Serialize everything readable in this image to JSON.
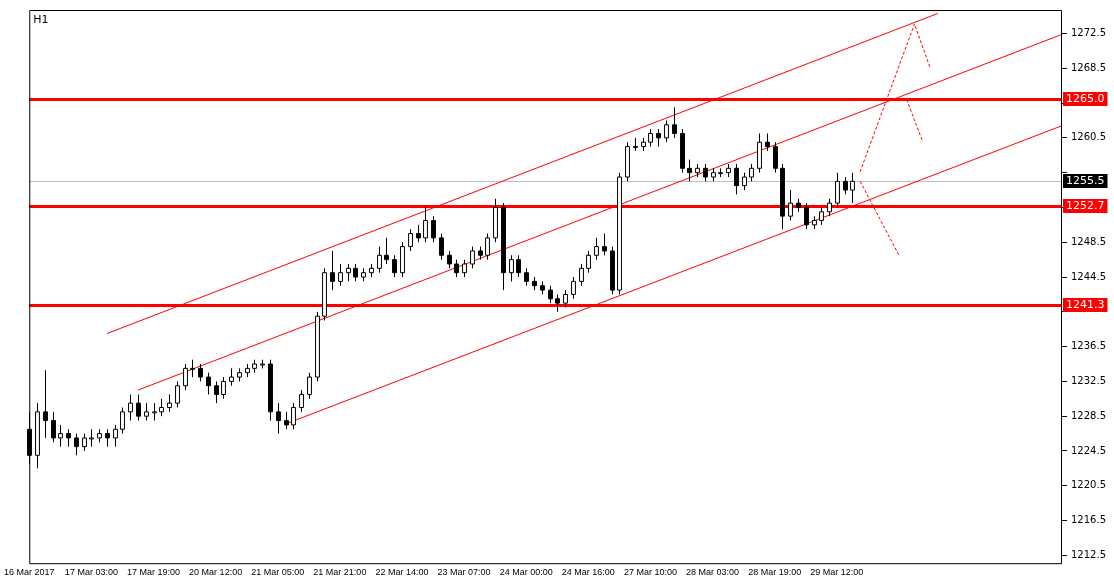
{
  "chart_data": {
    "type": "candlestick",
    "title": "H1",
    "categories": [
      "16 Mar 2017",
      null,
      null,
      null,
      null,
      null,
      null,
      null,
      "17 Mar 03:00",
      null,
      null,
      null,
      null,
      null,
      null,
      null,
      "17 Mar 19:00",
      null,
      null,
      null,
      null,
      null,
      null,
      null,
      "20 Mar 12:00",
      null,
      null,
      null,
      null,
      null,
      null,
      null,
      "21 Mar 05:00",
      null,
      null,
      null,
      null,
      null,
      null,
      null,
      "21 Mar 21:00",
      null,
      null,
      null,
      null,
      null,
      null,
      null,
      "22 Mar 14:00",
      null,
      null,
      null,
      null,
      null,
      null,
      null,
      "23 Mar 07:00",
      null,
      null,
      null,
      null,
      null,
      null,
      null,
      "24 Mar 00:00",
      null,
      null,
      null,
      null,
      null,
      null,
      null,
      "24 Mar 16:00",
      null,
      null,
      null,
      null,
      null,
      null,
      null,
      "27 Mar 10:00",
      null,
      null,
      null,
      null,
      null,
      null,
      null,
      "28 Mar 03:00",
      null,
      null,
      null,
      null,
      null,
      null,
      null,
      "28 Mar 19:00",
      null,
      null,
      null,
      null,
      null,
      null,
      null,
      "29 Mar 12:00",
      null,
      null,
      null,
      null,
      null,
      null,
      null,
      null,
      null,
      null,
      null,
      null,
      null,
      null,
      null,
      null,
      null,
      null,
      null,
      null,
      null,
      null,
      null,
      null,
      null,
      null,
      null,
      null,
      null
    ],
    "ohlc": [
      [
        1227,
        1229,
        1223,
        1224
      ],
      [
        1224,
        1230,
        1222.5,
        1229
      ],
      [
        1229,
        1233.8,
        1226,
        1228
      ],
      [
        1228,
        1229,
        1225.5,
        1226
      ],
      [
        1226,
        1227.5,
        1225,
        1226.5
      ],
      [
        1226.5,
        1227,
        1225,
        1226
      ],
      [
        1226,
        1226.5,
        1224,
        1225
      ],
      [
        1225,
        1226.5,
        1224.5,
        1226
      ],
      [
        1226,
        1227,
        1225,
        1226
      ],
      [
        1226,
        1227,
        1225.5,
        1226.5
      ],
      [
        1226.5,
        1227,
        1225,
        1226
      ],
      [
        1226,
        1227.5,
        1225,
        1227
      ],
      [
        1227,
        1229.5,
        1226.5,
        1229
      ],
      [
        1229,
        1231,
        1228,
        1230
      ],
      [
        1230,
        1231,
        1228,
        1228.5
      ],
      [
        1228.5,
        1230,
        1228,
        1229
      ],
      [
        1229,
        1230,
        1228,
        1229
      ],
      [
        1229,
        1230.5,
        1228.5,
        1229.5
      ],
      [
        1229.5,
        1231,
        1229,
        1230
      ],
      [
        1230,
        1232.5,
        1229.5,
        1232
      ],
      [
        1232,
        1234.5,
        1231.5,
        1234
      ],
      [
        1234,
        1235,
        1233,
        1234
      ],
      [
        1234,
        1234.5,
        1232.5,
        1233
      ],
      [
        1233,
        1233.5,
        1231,
        1232
      ],
      [
        1232,
        1232.5,
        1230,
        1231
      ],
      [
        1231,
        1233,
        1230.5,
        1232.5
      ],
      [
        1232.5,
        1234,
        1232,
        1233
      ],
      [
        1233,
        1234,
        1232.5,
        1233.5
      ],
      [
        1233.5,
        1234.5,
        1233,
        1234
      ],
      [
        1234,
        1235,
        1233.5,
        1234.5
      ],
      [
        1234.5,
        1235,
        1234,
        1234.5
      ],
      [
        1234.5,
        1235,
        1228,
        1229
      ],
      [
        1229,
        1230,
        1226.5,
        1228
      ],
      [
        1228,
        1229,
        1227,
        1227.5
      ],
      [
        1227.5,
        1230,
        1227,
        1229.5
      ],
      [
        1229.5,
        1231.5,
        1229,
        1231
      ],
      [
        1231,
        1233.5,
        1230.5,
        1233
      ],
      [
        1233,
        1240.5,
        1232.5,
        1240
      ],
      [
        1240,
        1245.5,
        1239.5,
        1245
      ],
      [
        1245,
        1247.5,
        1243,
        1244
      ],
      [
        1244,
        1246,
        1243.5,
        1245
      ],
      [
        1245,
        1246,
        1244,
        1245.5
      ],
      [
        1245.5,
        1246,
        1244,
        1244.5
      ],
      [
        1244.5,
        1245.5,
        1244,
        1245
      ],
      [
        1245,
        1246,
        1244.5,
        1245.5
      ],
      [
        1245.5,
        1248,
        1245,
        1247
      ],
      [
        1247,
        1249,
        1246,
        1246.5
      ],
      [
        1246.5,
        1247,
        1244.5,
        1245
      ],
      [
        1245,
        1248.5,
        1244.5,
        1248
      ],
      [
        1248,
        1250,
        1247.5,
        1249.5
      ],
      [
        1249.5,
        1250.5,
        1248.5,
        1249
      ],
      [
        1249,
        1252.5,
        1248.5,
        1251
      ],
      [
        1251,
        1251.5,
        1248.5,
        1249
      ],
      [
        1249,
        1249.5,
        1246.5,
        1247
      ],
      [
        1247,
        1247.5,
        1245.5,
        1246
      ],
      [
        1246,
        1246.5,
        1244.5,
        1245
      ],
      [
        1245,
        1246.5,
        1244.5,
        1246
      ],
      [
        1246,
        1248,
        1245.5,
        1247.5
      ],
      [
        1247.5,
        1248,
        1246.5,
        1247
      ],
      [
        1247,
        1249.5,
        1246.5,
        1249
      ],
      [
        1249,
        1253.5,
        1248.5,
        1252.5
      ],
      [
        1252.5,
        1253,
        1243,
        1245
      ],
      [
        1245,
        1247,
        1244,
        1246.5
      ],
      [
        1246.5,
        1247,
        1244.5,
        1245
      ],
      [
        1245,
        1245.5,
        1243.5,
        1244
      ],
      [
        1244,
        1244.5,
        1243,
        1243.5
      ],
      [
        1243.5,
        1244,
        1242.5,
        1243
      ],
      [
        1243,
        1243.5,
        1241.5,
        1242
      ],
      [
        1242,
        1242.5,
        1240.5,
        1241.5
      ],
      [
        1241.5,
        1243,
        1241,
        1242.5
      ],
      [
        1242.5,
        1244.5,
        1242,
        1244
      ],
      [
        1244,
        1246,
        1243.5,
        1245.5
      ],
      [
        1245.5,
        1247.5,
        1245,
        1247
      ],
      [
        1247,
        1249,
        1246.5,
        1248
      ],
      [
        1248,
        1249.5,
        1247,
        1247.5
      ],
      [
        1247.5,
        1248,
        1242.5,
        1243
      ],
      [
        1243,
        1256.5,
        1242.5,
        1256
      ],
      [
        1256,
        1260,
        1255.5,
        1259.5
      ],
      [
        1259.5,
        1260.5,
        1259,
        1259.5
      ],
      [
        1259.5,
        1260.5,
        1259,
        1260
      ],
      [
        1260,
        1261.5,
        1259.5,
        1261
      ],
      [
        1261,
        1261.5,
        1259.5,
        1260.5
      ],
      [
        1260.5,
        1262.5,
        1260,
        1262
      ],
      [
        1262,
        1264,
        1260.5,
        1261
      ],
      [
        1261,
        1261.5,
        1256.5,
        1257
      ],
      [
        1257,
        1258,
        1255.5,
        1256.5
      ],
      [
        1256.5,
        1257.5,
        1256,
        1257
      ],
      [
        1257,
        1257.5,
        1255.5,
        1256
      ],
      [
        1256,
        1257,
        1255.5,
        1256.5
      ],
      [
        1256.5,
        1257,
        1256,
        1256.5
      ],
      [
        1256.5,
        1257.5,
        1256,
        1257
      ],
      [
        1257,
        1257.5,
        1254,
        1255
      ],
      [
        1255,
        1256.5,
        1254.5,
        1256
      ],
      [
        1256,
        1257.5,
        1255.5,
        1257
      ],
      [
        1257,
        1261,
        1256.5,
        1260
      ],
      [
        1260,
        1261,
        1259,
        1259.5
      ],
      [
        1259.5,
        1260,
        1256.5,
        1257
      ],
      [
        1257,
        1257.5,
        1250,
        1251.5
      ],
      [
        1251.5,
        1254.5,
        1251,
        1253
      ],
      [
        1253,
        1253.5,
        1252,
        1252.5
      ],
      [
        1252.5,
        1253,
        1250,
        1250.5
      ],
      [
        1250.5,
        1251.5,
        1250,
        1251
      ],
      [
        1251,
        1252.5,
        1250.5,
        1252
      ],
      [
        1252,
        1253.5,
        1251.5,
        1253
      ],
      [
        1253,
        1256.5,
        1252.5,
        1255.5
      ],
      [
        1255.5,
        1256,
        1254,
        1254.5
      ],
      [
        1254.5,
        1256.5,
        1253,
        1255.5
      ],
      null,
      null,
      null,
      null,
      null,
      null,
      null,
      null,
      null,
      null,
      null,
      null,
      null,
      null,
      null,
      null,
      null,
      null,
      null,
      null,
      null,
      null,
      null,
      null,
      null,
      null,
      null
    ],
    "series": [
      {
        "type": "line",
        "color": "#ff0000",
        "line_style": "solid",
        "values": [
          null,
          null,
          null,
          null,
          null,
          null,
          null,
          null,
          null,
          null,
          1238.0,
          null,
          null,
          null,
          null,
          null,
          null,
          null,
          null,
          null,
          null,
          null,
          null,
          null,
          null,
          null,
          null,
          null,
          null,
          null,
          null,
          null,
          null,
          null,
          null,
          null,
          null,
          null,
          null,
          null,
          null,
          null,
          null,
          null,
          null,
          null,
          null,
          null,
          null,
          null,
          null,
          null,
          null,
          null,
          null,
          null,
          null,
          null,
          null,
          null,
          null,
          null,
          null,
          null,
          null,
          null,
          null,
          null,
          null,
          null,
          null,
          null,
          null,
          null,
          null,
          null,
          null,
          null,
          null,
          null,
          null,
          null,
          null,
          null,
          null,
          null,
          null,
          null,
          null,
          null,
          null,
          null,
          null,
          null,
          null,
          null,
          null,
          null,
          null,
          null,
          null,
          null,
          null,
          null,
          null,
          null,
          null,
          null,
          null,
          null,
          null,
          null,
          null,
          null,
          null,
          null,
          null,
          1274.8,
          null,
          null,
          null,
          null,
          null,
          null,
          null,
          null,
          null,
          null,
          null,
          null,
          null,
          null,
          null,
          null
        ]
      },
      {
        "type": "line",
        "color": "#ff0000",
        "line_style": "solid",
        "values": [
          null,
          null,
          null,
          null,
          null,
          null,
          null,
          null,
          null,
          null,
          null,
          null,
          null,
          null,
          1231.5,
          null,
          null,
          null,
          null,
          null,
          null,
          null,
          null,
          null,
          null,
          null,
          null,
          null,
          null,
          null,
          null,
          null,
          null,
          null,
          null,
          null,
          null,
          null,
          null,
          null,
          null,
          null,
          null,
          null,
          null,
          null,
          null,
          null,
          null,
          null,
          null,
          null,
          null,
          null,
          null,
          null,
          null,
          null,
          null,
          null,
          null,
          null,
          null,
          null,
          null,
          null,
          null,
          null,
          null,
          null,
          null,
          null,
          null,
          null,
          null,
          null,
          null,
          null,
          null,
          null,
          null,
          null,
          null,
          null,
          null,
          null,
          null,
          null,
          null,
          null,
          null,
          null,
          null,
          null,
          null,
          null,
          null,
          null,
          null,
          null,
          null,
          null,
          null,
          null,
          null,
          null,
          null,
          null,
          null,
          null,
          null,
          null,
          null,
          null,
          null,
          null,
          null,
          null,
          null,
          null,
          null,
          null,
          null,
          null,
          null,
          null,
          null,
          null,
          null,
          null,
          null,
          null,
          null,
          1272.4
        ]
      },
      {
        "type": "line",
        "color": "#ff0000",
        "line_style": "solid",
        "values": [
          null,
          null,
          null,
          null,
          null,
          null,
          null,
          null,
          null,
          null,
          null,
          null,
          null,
          null,
          null,
          null,
          null,
          null,
          null,
          null,
          null,
          null,
          null,
          null,
          null,
          null,
          null,
          null,
          null,
          null,
          null,
          null,
          null,
          1227.6,
          null,
          null,
          null,
          null,
          null,
          null,
          null,
          null,
          null,
          null,
          null,
          null,
          null,
          null,
          null,
          null,
          null,
          null,
          null,
          null,
          null,
          null,
          null,
          null,
          null,
          null,
          null,
          null,
          null,
          null,
          null,
          null,
          null,
          null,
          null,
          null,
          null,
          null,
          null,
          null,
          null,
          null,
          null,
          null,
          null,
          null,
          null,
          null,
          null,
          null,
          null,
          null,
          null,
          null,
          null,
          null,
          null,
          null,
          null,
          null,
          null,
          null,
          null,
          null,
          null,
          null,
          null,
          null,
          null,
          null,
          null,
          null,
          null,
          null,
          null,
          null,
          null,
          null,
          null,
          null,
          null,
          null,
          null,
          null,
          null,
          null,
          null,
          null,
          null,
          null,
          null,
          null,
          null,
          null,
          null,
          null,
          null,
          null,
          null,
          1261.9
        ]
      },
      {
        "type": "line",
        "color": "#ff0000",
        "line_style": "dashed",
        "values": [
          null,
          null,
          null,
          null,
          null,
          null,
          null,
          null,
          null,
          null,
          null,
          null,
          null,
          null,
          null,
          null,
          null,
          null,
          null,
          null,
          null,
          null,
          null,
          null,
          null,
          null,
          null,
          null,
          null,
          null,
          null,
          null,
          null,
          null,
          null,
          null,
          null,
          null,
          null,
          null,
          null,
          null,
          null,
          null,
          null,
          null,
          null,
          null,
          null,
          null,
          null,
          null,
          null,
          null,
          null,
          null,
          null,
          null,
          null,
          null,
          null,
          null,
          null,
          null,
          null,
          null,
          null,
          null,
          null,
          null,
          null,
          null,
          null,
          null,
          null,
          null,
          null,
          null,
          null,
          null,
          null,
          null,
          null,
          null,
          null,
          null,
          null,
          null,
          null,
          null,
          null,
          null,
          null,
          null,
          null,
          null,
          null,
          null,
          null,
          null,
          null,
          null,
          null,
          null,
          null,
          null,
          null,
          1256.6,
          null,
          null,
          null,
          null,
          null,
          null,
          1273.6,
          null,
          1268.6,
          null,
          null,
          null,
          null,
          null,
          null,
          null,
          null,
          null,
          null,
          null,
          null,
          null,
          null,
          null,
          null,
          null
        ]
      },
      {
        "type": "line",
        "color": "#ff0000",
        "line_style": "dashed",
        "values": [
          null,
          null,
          null,
          null,
          null,
          null,
          null,
          null,
          null,
          null,
          null,
          null,
          null,
          null,
          null,
          null,
          null,
          null,
          null,
          null,
          null,
          null,
          null,
          null,
          null,
          null,
          null,
          null,
          null,
          null,
          null,
          null,
          null,
          null,
          null,
          null,
          null,
          null,
          null,
          null,
          null,
          null,
          null,
          null,
          null,
          null,
          null,
          null,
          null,
          null,
          null,
          null,
          null,
          null,
          null,
          null,
          null,
          null,
          null,
          null,
          null,
          null,
          null,
          null,
          null,
          null,
          null,
          null,
          null,
          null,
          null,
          null,
          null,
          null,
          null,
          null,
          null,
          null,
          null,
          null,
          null,
          null,
          null,
          null,
          null,
          null,
          null,
          null,
          null,
          null,
          null,
          null,
          null,
          null,
          null,
          null,
          null,
          null,
          null,
          null,
          null,
          null,
          null,
          null,
          null,
          null,
          null,
          null,
          null,
          null,
          null,
          null,
          null,
          1264.9,
          null,
          1260.2,
          null,
          null,
          null,
          null,
          null,
          null,
          null,
          null,
          null,
          null,
          null,
          null,
          null,
          null,
          null,
          null,
          null,
          null
        ]
      },
      {
        "type": "line",
        "color": "#ff0000",
        "line_style": "dashed",
        "values": [
          null,
          null,
          null,
          null,
          null,
          null,
          null,
          null,
          null,
          null,
          null,
          null,
          null,
          null,
          null,
          null,
          null,
          null,
          null,
          null,
          null,
          null,
          null,
          null,
          null,
          null,
          null,
          null,
          null,
          null,
          null,
          null,
          null,
          null,
          null,
          null,
          null,
          null,
          null,
          null,
          null,
          null,
          null,
          null,
          null,
          null,
          null,
          null,
          null,
          null,
          null,
          null,
          null,
          null,
          null,
          null,
          null,
          null,
          null,
          null,
          null,
          null,
          null,
          null,
          null,
          null,
          null,
          null,
          null,
          null,
          null,
          null,
          null,
          null,
          null,
          null,
          null,
          null,
          null,
          null,
          null,
          null,
          null,
          null,
          null,
          null,
          null,
          null,
          null,
          null,
          null,
          null,
          null,
          null,
          null,
          null,
          null,
          null,
          null,
          null,
          null,
          null,
          null,
          null,
          null,
          null,
          null,
          1255.5,
          null,
          null,
          null,
          null,
          1247.0,
          null,
          null,
          null,
          null,
          null,
          null,
          null,
          null,
          null,
          null,
          null,
          null,
          null,
          null,
          null,
          null,
          null,
          null,
          null,
          null,
          null
        ]
      }
    ],
    "ylim": [
      1211.6,
      1275.2
    ],
    "yticks": [
      1212.5,
      1216.5,
      1220.5,
      1224.5,
      1228.5,
      1232.5,
      1236.5,
      {
        "value": 1240.5,
        "label": null
      },
      1244.5,
      1248.5,
      {
        "value": 1252.5,
        "label": null
      },
      {
        "value": 1256.5,
        "label": null
      },
      1260.5,
      {
        "value": 1264.5,
        "label": null
      },
      1268.5,
      1272.5
    ],
    "ref_lines": [
      {
        "axis": "y",
        "value": 1265.0,
        "label": "1265.0",
        "color": "#ff0000"
      },
      {
        "axis": "y",
        "value": 1252.7,
        "label": "1252.7",
        "color": "#ff0000"
      },
      {
        "axis": "y",
        "value": 1241.3,
        "label": "1241.3",
        "color": "#ff0000"
      },
      {
        "axis": "y",
        "value": 1255.5,
        "label": "1255.5",
        "color": "#c0c0c0"
      }
    ],
    "legend": false
  }
}
